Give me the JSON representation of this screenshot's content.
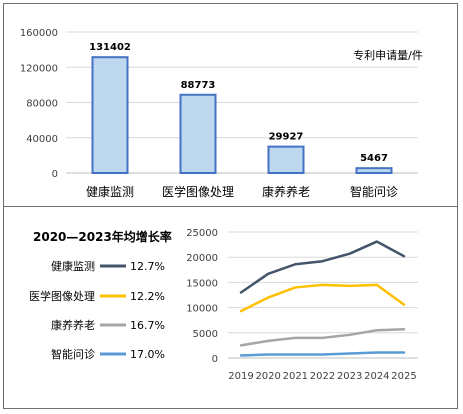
{
  "chart_data": [
    {
      "type": "bar",
      "categories": [
        "健康监测",
        "医学图像处理",
        "康养养老",
        "智能问诊"
      ],
      "values": [
        131402,
        88773,
        29927,
        5467
      ],
      "value_labels": [
        "131402",
        "88773",
        "29927",
        "5467"
      ],
      "ylim": [
        0,
        160000
      ],
      "yticks": [
        "0",
        "40000",
        "80000",
        "120000",
        "160000"
      ],
      "annotation": "专利申请量/件",
      "grid": true,
      "colors": {
        "bar_fill": "#bdd7ee",
        "bar_stroke": "#4472c4"
      }
    },
    {
      "type": "line",
      "title": "2020—2023年均增长率",
      "x": [
        2019,
        2020,
        2021,
        2022,
        2023,
        2024,
        2025
      ],
      "xticks": [
        "2019",
        "2020",
        "2021",
        "2022",
        "2023",
        "2024",
        "2025"
      ],
      "ylim": [
        0,
        25000
      ],
      "yticks": [
        "0",
        "5000",
        "10000",
        "15000",
        "20000",
        "25000"
      ],
      "grid": true,
      "legend_placement": "left",
      "series": [
        {
          "name": "健康监测",
          "rate": "12.7%",
          "color": "#44546a",
          "values": [
            13000,
            16700,
            18600,
            19200,
            20700,
            23100,
            20200
          ]
        },
        {
          "name": "医学图像处理",
          "rate": "12.2%",
          "color": "#ffc000",
          "values": [
            9300,
            12000,
            14000,
            14500,
            14300,
            14500,
            10600
          ]
        },
        {
          "name": "康养养老",
          "rate": "16.7%",
          "color": "#a5a5a5",
          "values": [
            2500,
            3400,
            4000,
            4000,
            4600,
            5500,
            5700
          ]
        },
        {
          "name": "智能问诊",
          "rate": "17.0%",
          "color": "#5b9bd5",
          "values": [
            500,
            700,
            700,
            700,
            900,
            1100,
            1100
          ]
        }
      ]
    }
  ]
}
